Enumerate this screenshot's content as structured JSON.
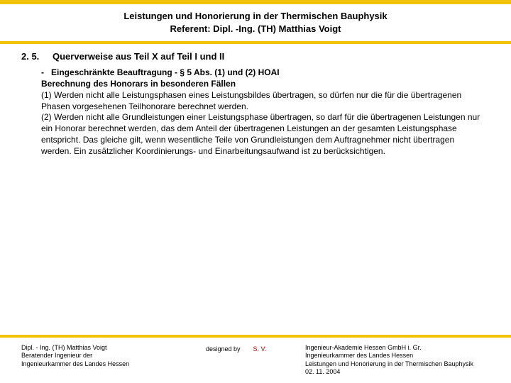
{
  "colors": {
    "accent": "#f2c400",
    "background": "#ffffff",
    "text": "#000000",
    "sv": "#c00000"
  },
  "header": {
    "title": "Leistungen und Honorierung in der Thermischen Bauphysik",
    "subtitle": "Referent: Dipl. -Ing. (TH) Matthias Voigt"
  },
  "section": {
    "number": "2. 5.",
    "title": "Querverweise aus Teil X auf Teil I und II"
  },
  "body": {
    "lead_bullet": "-",
    "lead_text": "Eingeschränkte Beauftragung - § 5 Abs. (1) und (2) HOAI",
    "subhead": "Berechnung des Honorars in besonderen Fällen",
    "p1": "(1) Werden nicht alle Leistungsphasen eines Leistungsbildes übertragen, so dürfen nur die für die übertragenen Phasen vorgesehenen Teilhonorare berechnet werden.",
    "p2": "(2) Werden nicht alle Grundleistungen einer Leistungsphase übertragen, so darf für die übertragenen Leistungen nur ein Honorar berechnet werden, das dem Anteil der übertragenen Leistungen an der gesamten Leistungsphase entspricht. Das gleiche gilt, wenn wesentliche Teile von Grundleistungen dem Auftragnehmer nicht übertragen werden. Ein zusätzlicher Koordinierungs- und Einarbeitungsaufwand ist zu berücksichtigen."
  },
  "footer": {
    "left_line1": "Dipl. - Ing. (TH) Matthias Voigt",
    "left_line2": "Beratender Ingenieur der",
    "left_line3": "Ingenieurkammer des Landes Hessen",
    "designed_by": "designed by",
    "sv": "S. V.",
    "right_line1": "Ingenieur-Akademie Hessen GmbH i. Gr.",
    "right_line2": "Ingenieurkammer des Landes Hessen",
    "right_line3": "Leistungen und Honorierung in der Thermischen Bauphysik",
    "right_line4": "02. 11. 2004"
  }
}
